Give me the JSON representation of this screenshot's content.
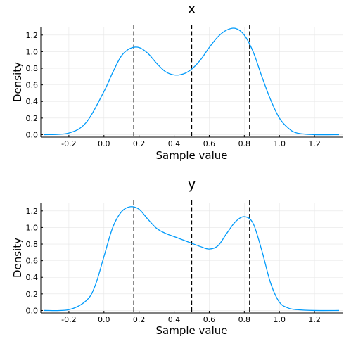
{
  "chart_data": [
    {
      "type": "line",
      "title": "x",
      "xlabel": "Sample value",
      "ylabel": "Density",
      "xlim": [
        -0.36,
        1.36
      ],
      "ylim": [
        -0.03,
        1.3
      ],
      "xticks": [
        -0.2,
        0.0,
        0.2,
        0.4,
        0.6,
        0.8,
        1.0,
        1.2
      ],
      "xtick_labels": [
        "-0.2",
        "0.0",
        "0.2",
        "0.4",
        "0.6",
        "0.8",
        "1.0",
        "1.2"
      ],
      "yticks": [
        0.0,
        0.2,
        0.4,
        0.6,
        0.8,
        1.0,
        1.2
      ],
      "ytick_labels": [
        "0.0",
        "0.2",
        "0.4",
        "0.6",
        "0.8",
        "1.0",
        "1.2"
      ],
      "grid": true,
      "line_color": "#009AFA",
      "vlines": [
        0.17,
        0.5,
        0.83
      ],
      "series": [
        {
          "x": [
            -0.34,
            -0.2,
            -0.1,
            0.0,
            0.05,
            0.1,
            0.15,
            0.2,
            0.25,
            0.3,
            0.35,
            0.4,
            0.45,
            0.5,
            0.55,
            0.6,
            0.65,
            0.7,
            0.75,
            0.8,
            0.85,
            0.9,
            0.95,
            1.0,
            1.05,
            1.1,
            1.2,
            1.34
          ],
          "y": [
            0.0,
            0.02,
            0.15,
            0.52,
            0.75,
            0.95,
            1.04,
            1.05,
            0.98,
            0.86,
            0.76,
            0.72,
            0.73,
            0.79,
            0.9,
            1.05,
            1.18,
            1.26,
            1.28,
            1.2,
            1.0,
            0.7,
            0.42,
            0.2,
            0.08,
            0.02,
            0.0,
            0.0
          ]
        }
      ]
    },
    {
      "type": "line",
      "title": "y",
      "xlabel": "Sample value",
      "ylabel": "Density",
      "xlim": [
        -0.36,
        1.36
      ],
      "ylim": [
        -0.03,
        1.3
      ],
      "xticks": [
        -0.2,
        0.0,
        0.2,
        0.4,
        0.6,
        0.8,
        1.0,
        1.2
      ],
      "xtick_labels": [
        "-0.2",
        "0.0",
        "0.2",
        "0.4",
        "0.6",
        "0.8",
        "1.0",
        "1.2"
      ],
      "yticks": [
        0.0,
        0.2,
        0.4,
        0.6,
        0.8,
        1.0,
        1.2
      ],
      "ytick_labels": [
        "0.0",
        "0.2",
        "0.4",
        "0.6",
        "0.8",
        "1.0",
        "1.2"
      ],
      "grid": true,
      "line_color": "#009AFA",
      "vlines": [
        0.17,
        0.5,
        0.83
      ],
      "series": [
        {
          "x": [
            -0.34,
            -0.2,
            -0.1,
            -0.05,
            0.0,
            0.05,
            0.1,
            0.15,
            0.2,
            0.25,
            0.3,
            0.35,
            0.4,
            0.45,
            0.5,
            0.55,
            0.6,
            0.65,
            0.7,
            0.75,
            0.8,
            0.85,
            0.9,
            0.95,
            1.0,
            1.05,
            1.1,
            1.2,
            1.34
          ],
          "y": [
            0.0,
            0.01,
            0.12,
            0.3,
            0.65,
            1.0,
            1.19,
            1.25,
            1.22,
            1.1,
            0.99,
            0.93,
            0.89,
            0.85,
            0.81,
            0.77,
            0.74,
            0.78,
            0.93,
            1.07,
            1.13,
            1.05,
            0.72,
            0.33,
            0.1,
            0.03,
            0.01,
            0.0,
            0.0
          ]
        }
      ]
    }
  ]
}
